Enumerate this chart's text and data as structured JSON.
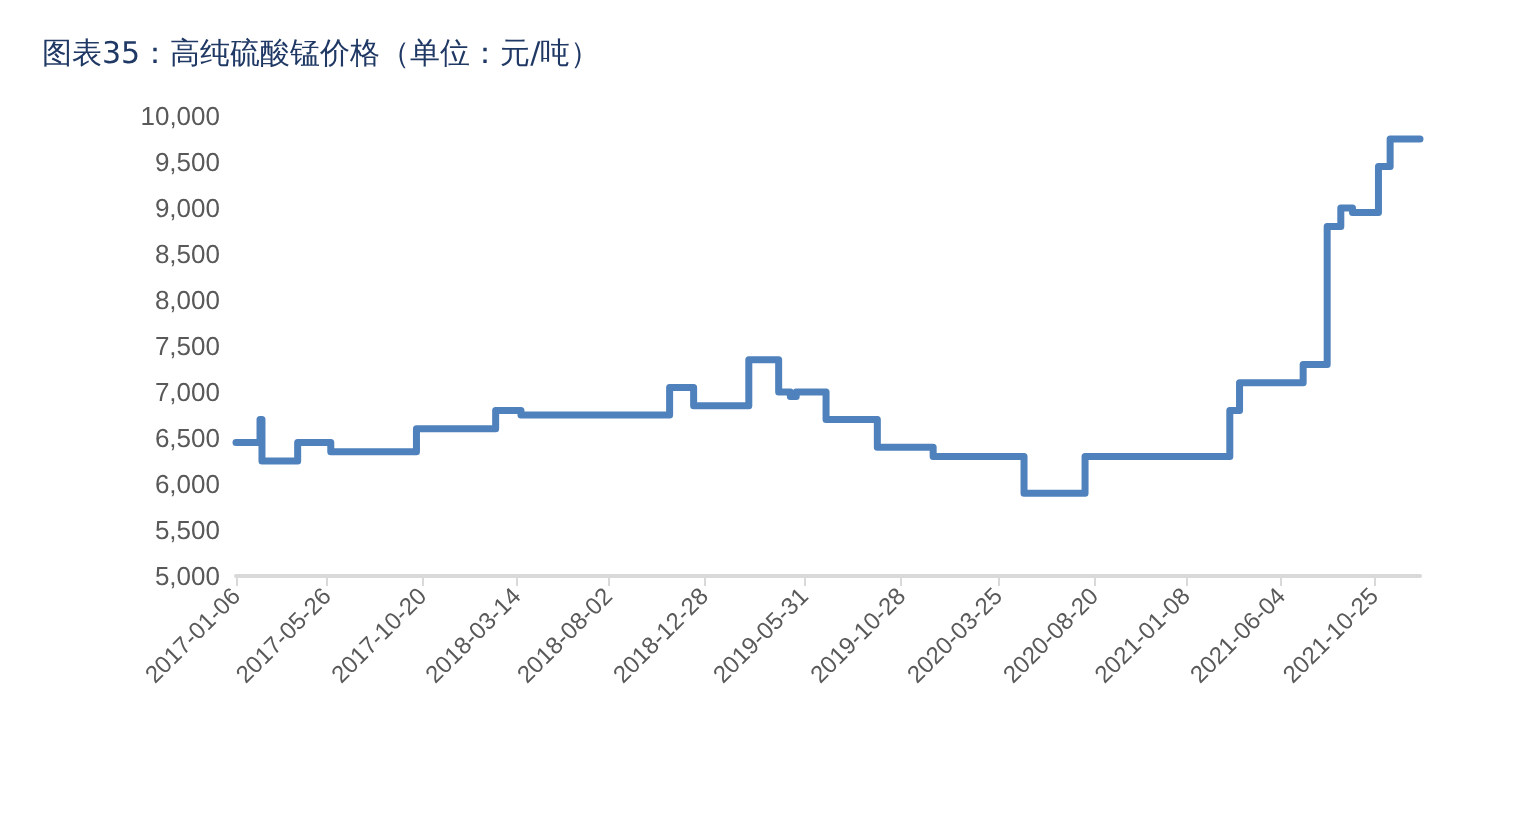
{
  "chart_data": {
    "type": "step",
    "title": "图表35：高纯硫酸锰价格（单位：元/吨）",
    "x": [
      "2017-01-06",
      "2017-02-12",
      "2017-02-15",
      "2017-04-11",
      "2017-06-01",
      "2017-10-11",
      "2018-02-10",
      "2018-03-21",
      "2018-11-05",
      "2018-12-12",
      "2019-03-07",
      "2019-04-22",
      "2019-05-10",
      "2019-05-19",
      "2019-07-04",
      "2019-09-21",
      "2019-12-16",
      "2020-05-04",
      "2020-08-06",
      "2021-03-17",
      "2021-04-01",
      "2021-07-08",
      "2021-08-14",
      "2021-09-04",
      "2021-09-22",
      "2021-11-01",
      "2021-11-19",
      "2022-01-04"
    ],
    "series": [
      {
        "color": "#4f81bd",
        "values": [
          6450,
          6700,
          6250,
          6450,
          6350,
          6600,
          6800,
          6750,
          7050,
          6850,
          7350,
          7000,
          6950,
          7000,
          6700,
          6400,
          6300,
          5900,
          6300,
          6800,
          7100,
          7300,
          8800,
          9000,
          8950,
          9450,
          9750,
          9750
        ]
      }
    ],
    "xlim": [
      "2017-01-06",
      "2022-01-04"
    ],
    "xticks": [
      "2017-01-06",
      "2017-05-26",
      "2017-10-20",
      "2018-03-14",
      "2018-08-02",
      "2018-12-28",
      "2019-05-31",
      "2019-10-28",
      "2020-03-25",
      "2020-08-20",
      "2021-01-08",
      "2021-06-04",
      "2021-10-25"
    ],
    "ylim": [
      5000,
      10000
    ],
    "yticks": [
      {
        "value": 5000,
        "label": "5,000"
      },
      {
        "value": 5500,
        "label": "5,500"
      },
      {
        "value": 6000,
        "label": "6,000"
      },
      {
        "value": 6500,
        "label": "6,500"
      },
      {
        "value": 7000,
        "label": "7,000"
      },
      {
        "value": 7500,
        "label": "7,500"
      },
      {
        "value": 8000,
        "label": "8,000"
      },
      {
        "value": 8500,
        "label": "8,500"
      },
      {
        "value": 9000,
        "label": "9,000"
      },
      {
        "value": 9500,
        "label": "9,500"
      },
      {
        "value": 10000,
        "label": "10,000"
      }
    ],
    "grid": false,
    "marker": "none",
    "line_style": "solid"
  }
}
